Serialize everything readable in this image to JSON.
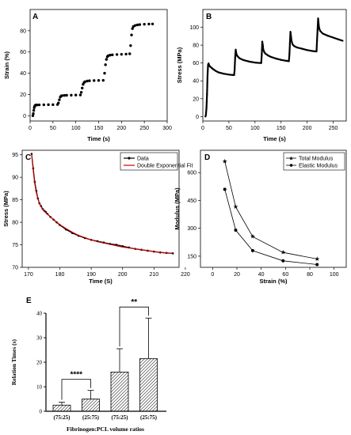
{
  "chart_data": [
    {
      "panel": "A",
      "type": "scatter",
      "xlabel": "Time (s)",
      "ylabel": "Strain (%)",
      "xlim": [
        0,
        300
      ],
      "ylim": [
        -5,
        100
      ],
      "xticks": [
        "0",
        "50",
        "100",
        "150",
        "200",
        "250",
        "300"
      ],
      "yticks": [
        "0",
        "20",
        "40",
        "60",
        "80"
      ],
      "x": [
        6,
        7,
        8,
        9,
        10,
        11,
        12,
        13,
        15,
        20,
        30,
        40,
        50,
        60,
        62,
        64,
        66,
        68,
        70,
        75,
        80,
        90,
        100,
        110,
        112,
        114,
        116,
        118,
        120,
        125,
        130,
        140,
        150,
        160,
        163,
        165,
        167,
        169,
        171,
        175,
        180,
        190,
        200,
        210,
        218,
        220,
        222,
        224,
        226,
        230,
        235,
        240,
        250,
        260,
        268
      ],
      "y": [
        0,
        2,
        5,
        7.5,
        9,
        9.6,
        9.9,
        10,
        10.1,
        10.2,
        10.3,
        10.4,
        10.4,
        10.5,
        12,
        15,
        17.5,
        18.6,
        18.9,
        19.1,
        19.2,
        19.3,
        19.4,
        19.5,
        22,
        26,
        29.5,
        31.2,
        32,
        32.6,
        32.9,
        33.1,
        33.2,
        33.3,
        40,
        48,
        53,
        55.5,
        56.5,
        57,
        57.3,
        57.6,
        57.8,
        58,
        58.3,
        66,
        76,
        82,
        84,
        85,
        85.5,
        85.8,
        86.1,
        86.3,
        86.4
      ]
    },
    {
      "panel": "B",
      "type": "line",
      "xlabel": "Time (s)",
      "ylabel": "Stress (MPa)",
      "xlim": [
        0,
        275
      ],
      "ylim": [
        -5,
        120
      ],
      "xticks": [
        "0",
        "50",
        "100",
        "150",
        "200",
        "250"
      ],
      "yticks": [
        "0",
        "20",
        "40",
        "60",
        "80",
        "100"
      ],
      "x": [
        5,
        6,
        7,
        8,
        9,
        10,
        11,
        12,
        14,
        17,
        20,
        25,
        30,
        40,
        50,
        58,
        60,
        61,
        62,
        63,
        64,
        66,
        70,
        75,
        80,
        90,
        100,
        110,
        112,
        113,
        114,
        115,
        116,
        118,
        120,
        125,
        130,
        140,
        150,
        160,
        165,
        166,
        167,
        168,
        169,
        170,
        172,
        175,
        180,
        190,
        200,
        210,
        216,
        218,
        219,
        220,
        221,
        222,
        223,
        225,
        230,
        240,
        250,
        260,
        268
      ],
      "y": [
        0,
        2,
        10,
        25,
        45,
        58,
        59.5,
        57.5,
        56,
        54.5,
        53,
        51,
        49.5,
        48,
        47,
        46.5,
        46.5,
        52,
        66,
        75,
        71,
        68,
        65.5,
        64,
        63,
        61.5,
        60.5,
        60,
        60,
        70,
        84,
        80,
        75,
        72,
        70.5,
        68.5,
        67,
        65,
        63.5,
        62.5,
        62,
        70,
        82,
        95,
        90,
        85,
        81,
        79,
        77.5,
        76,
        74.5,
        73.5,
        73,
        73,
        85,
        97,
        110,
        104,
        99,
        96,
        93,
        90.5,
        88.5,
        86.5,
        85
      ]
    },
    {
      "panel": "C",
      "type": "line",
      "xlabel": "Time (S)",
      "ylabel": "Stress (MPa)",
      "xlim": [
        168,
        218
      ],
      "ylim": [
        70,
        96
      ],
      "xticks": [
        "170",
        "180",
        "190",
        "200",
        "210",
        "220"
      ],
      "yticks": [
        "70",
        "75",
        "80",
        "85",
        "90",
        "95"
      ],
      "legend": "top-right",
      "series": [
        {
          "name": "Data",
          "x": [
            171,
            171.5,
            172,
            172.5,
            173,
            173.5,
            174,
            174.5,
            175,
            175.5,
            176,
            177,
            178,
            179,
            180,
            182,
            184,
            186,
            188,
            190,
            192,
            194,
            196,
            198,
            200,
            202,
            204,
            206,
            208,
            210,
            212,
            214,
            216
          ],
          "y": [
            95.2,
            92,
            89,
            87,
            85.3,
            84.2,
            83.6,
            83,
            82.6,
            82.3,
            81.9,
            81.2,
            80.6,
            80,
            79.4,
            78.4,
            77.6,
            77,
            76.5,
            76.1,
            75.8,
            75.5,
            75.2,
            75,
            74.7,
            74.4,
            74.1,
            73.9,
            73.7,
            73.5,
            73.3,
            73.2,
            73.1
          ]
        },
        {
          "name": "Double Exponential Fit",
          "x": [
            171,
            171.5,
            172,
            172.5,
            173,
            173.5,
            174,
            175,
            176,
            177,
            178,
            180,
            182,
            184,
            186,
            188,
            190,
            192,
            194,
            196,
            198,
            200,
            202,
            204,
            206,
            208,
            210,
            212,
            214,
            216
          ],
          "y": [
            95.2,
            91.5,
            88.6,
            86.6,
            85.2,
            84.2,
            83.5,
            82.5,
            81.8,
            81.2,
            80.6,
            79.5,
            78.6,
            77.8,
            77.1,
            76.6,
            76.1,
            75.7,
            75.4,
            75.1,
            74.8,
            74.5,
            74.3,
            74.1,
            73.9,
            73.7,
            73.5,
            73.3,
            73.2,
            73.1
          ]
        }
      ]
    },
    {
      "panel": "D",
      "type": "line",
      "xlabel": "Strain (%)",
      "ylabel": "Modulus (MPa)",
      "xlim": [
        -10,
        110
      ],
      "ylim": [
        90,
        720
      ],
      "xticks": [
        "0",
        "20",
        "40",
        "60",
        "80",
        "100"
      ],
      "yticks": [
        "150",
        "300",
        "450",
        "600"
      ],
      "legend": "top-right",
      "series": [
        {
          "name": "Total Modulus",
          "x": [
            10,
            19,
            33,
            58,
            86
          ],
          "y": [
            660,
            415,
            255,
            170,
            135
          ]
        },
        {
          "name": "Elastic Modulus",
          "x": [
            10,
            19,
            33,
            58,
            86
          ],
          "y": [
            510,
            290,
            180,
            125,
            105
          ]
        }
      ]
    },
    {
      "panel": "E",
      "type": "bar",
      "xlabel": "Fibrinogen:PCL volume ratios",
      "ylabel": "Relation Times (s)",
      "ylim": [
        0,
        40
      ],
      "yticks": [
        "0",
        "10",
        "20",
        "30",
        "40"
      ],
      "categories": [
        "(75:25)",
        "(25:75)",
        "(75:25)",
        "(25:75)"
      ],
      "values": [
        2.5,
        5,
        16,
        21.5
      ],
      "errors": [
        1.2,
        3.5,
        9.5,
        16.5
      ],
      "significance": [
        {
          "from": 0,
          "to": 1,
          "label": "****"
        },
        {
          "from": 2,
          "to": 3,
          "label": "**"
        }
      ]
    }
  ],
  "panel_labels": [
    "A",
    "B",
    "C",
    "D",
    "E"
  ],
  "colors": {
    "data": "#000000",
    "fit": "#cc0000",
    "axes": "#000000"
  }
}
